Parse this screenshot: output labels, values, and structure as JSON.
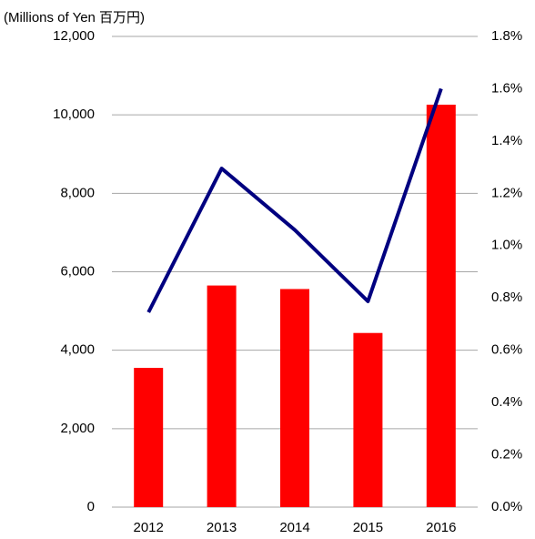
{
  "chart_data": {
    "type": "bar",
    "title": "(Millions of Yen 百万円)",
    "categories": [
      "2012",
      "2013",
      "2014",
      "2015",
      "2016"
    ],
    "series": [
      {
        "type": "bar",
        "color": "#ff0000",
        "values": [
          3550,
          5650,
          5560,
          4440,
          10260
        ]
      },
      {
        "type": "line",
        "color": "#000080",
        "axis": "y2",
        "values": [
          0.745,
          1.295,
          1.06,
          0.787,
          1.6
        ]
      }
    ],
    "ylim": [
      0,
      12000
    ],
    "yticks": [
      0,
      {
        "value": 2000,
        "label": "2,000"
      },
      {
        "value": 4000,
        "label": "4,000"
      },
      {
        "value": 6000,
        "label": "6,000"
      },
      {
        "value": 8000,
        "label": "8,000"
      },
      {
        "value": 10000,
        "label": "10,000"
      },
      {
        "value": 12000,
        "label": "12,000"
      }
    ],
    "y2lim": [
      0,
      1.8
    ],
    "y2ticks": [
      {
        "value": 0,
        "label": "0.0%"
      },
      {
        "value": 0.2,
        "label": "0.2%"
      },
      {
        "value": 0.4,
        "label": "0.4%"
      },
      {
        "value": 0.6,
        "label": "0.6%"
      },
      {
        "value": 0.8,
        "label": "0.8%"
      },
      {
        "value": 1.0,
        "label": "1.0%"
      },
      {
        "value": 1.2,
        "label": "1.2%"
      },
      {
        "value": 1.4,
        "label": "1.4%"
      },
      {
        "value": 1.6,
        "label": "1.6%"
      },
      {
        "value": 1.8,
        "label": "1.8%"
      }
    ],
    "grid": true
  }
}
